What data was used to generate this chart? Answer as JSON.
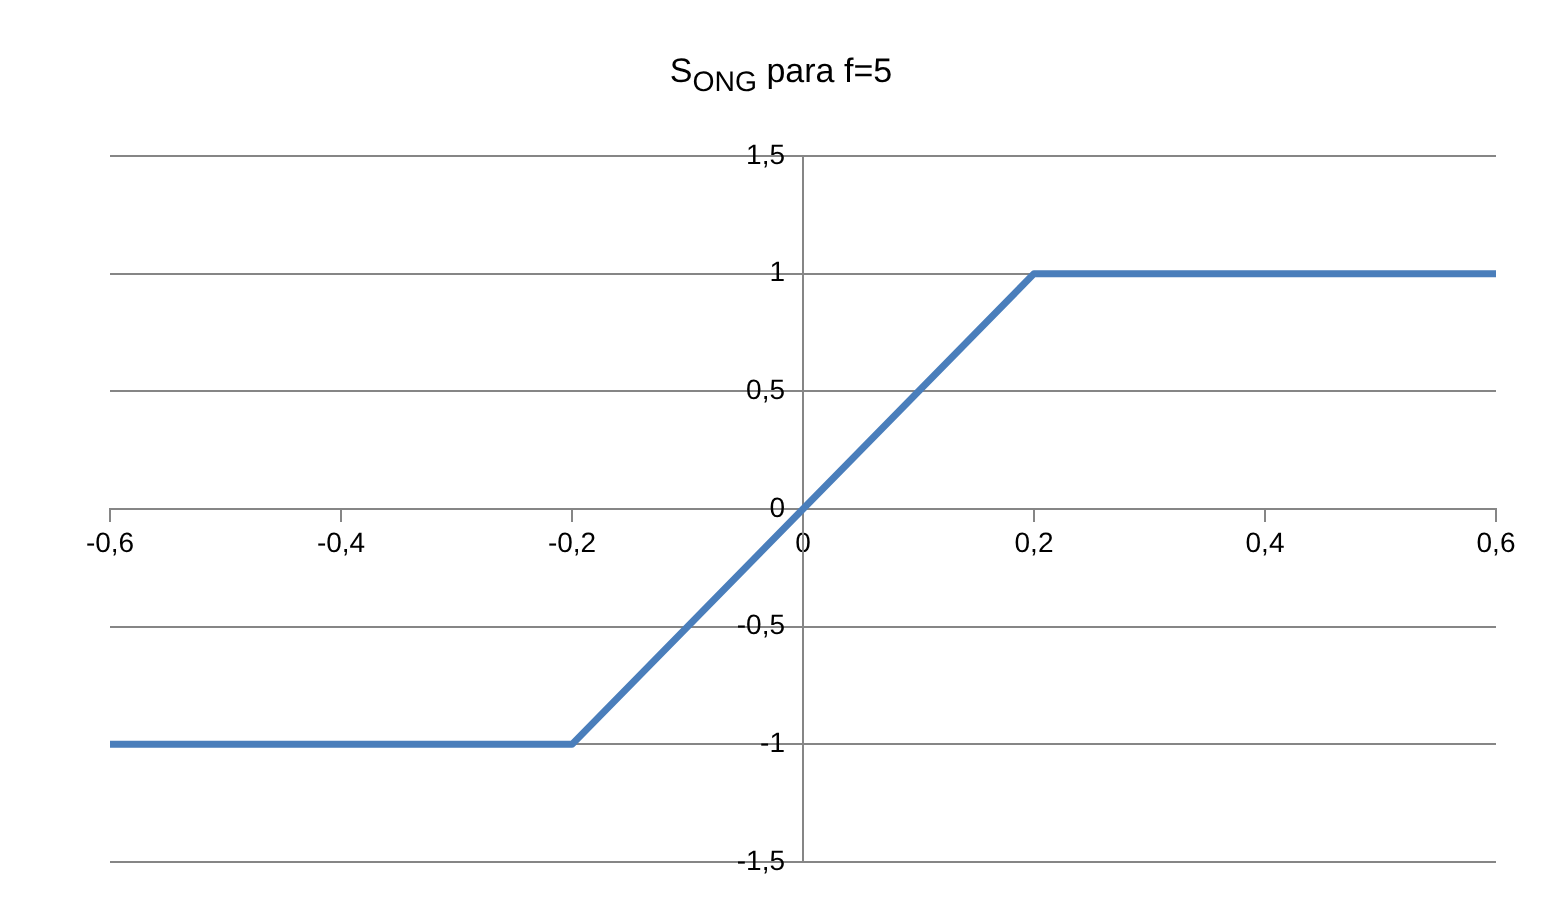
{
  "chart_data": {
    "type": "line",
    "title": "S$_{ONG}$ para f=5",
    "x": [
      -0.6,
      -0.2,
      0.2,
      0.6
    ],
    "series": [
      {
        "color": "#4a7ebb",
        "values": [
          -1,
          -1,
          1,
          1
        ]
      }
    ],
    "xlim": [
      -0.6,
      0.6
    ],
    "xticks": [
      {
        "value": -0.6,
        "label": "-0,6"
      },
      {
        "value": -0.4,
        "label": "-0,4"
      },
      {
        "value": -0.2,
        "label": "-0,2"
      },
      0,
      {
        "value": 0.2,
        "label": "0,2"
      },
      {
        "value": 0.4,
        "label": "0,4"
      },
      {
        "value": 0.6,
        "label": "0,6"
      }
    ],
    "ylim": [
      -1.5,
      1.5
    ],
    "yticks": [
      {
        "value": -1.5,
        "label": "-1,5"
      },
      -1,
      {
        "value": -0.5,
        "label": "-0,5"
      },
      0,
      {
        "value": 0.5,
        "label": "0,5"
      },
      1,
      {
        "value": 1.5,
        "label": "1,5"
      }
    ],
    "grid": "y",
    "legend": false,
    "marker": "none",
    "line_style": "solid"
  }
}
